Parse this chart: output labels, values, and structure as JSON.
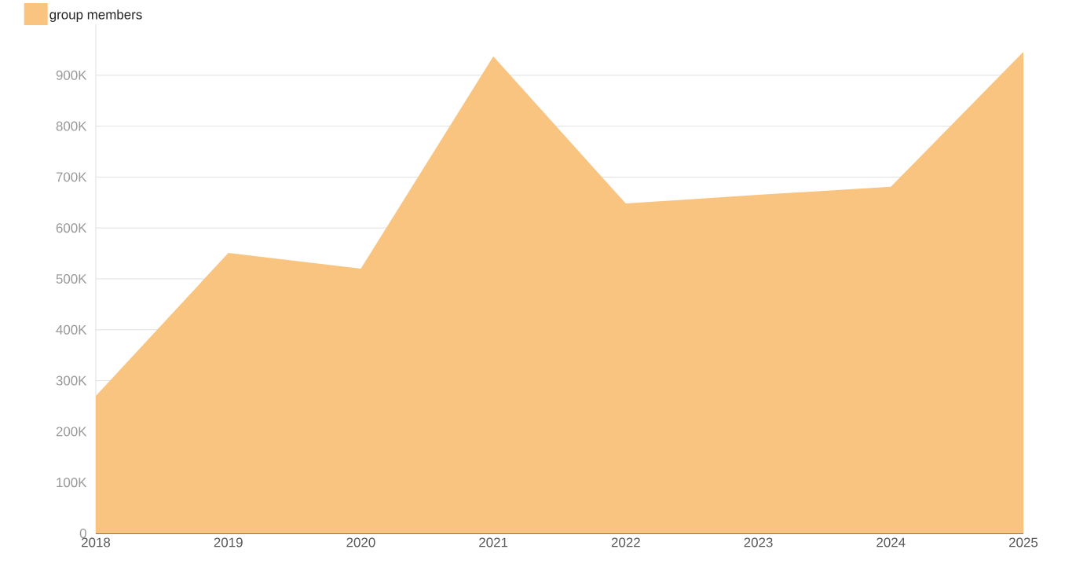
{
  "chart_data": {
    "type": "area",
    "categories": [
      "2018",
      "2019",
      "2020",
      "2021",
      "2022",
      "2023",
      "2024",
      "2025"
    ],
    "series": [
      {
        "name": "group members",
        "color": "#f9c480",
        "values": [
          270000,
          551000,
          520000,
          937000,
          648000,
          665000,
          681000,
          946000
        ]
      }
    ],
    "yticks": [
      {
        "value": 0,
        "label": "0"
      },
      {
        "value": 100000,
        "label": "100K"
      },
      {
        "value": 200000,
        "label": "200K"
      },
      {
        "value": 300000,
        "label": "300K"
      },
      {
        "value": 400000,
        "label": "400K"
      },
      {
        "value": 500000,
        "label": "500K"
      },
      {
        "value": 600000,
        "label": "600K"
      },
      {
        "value": 700000,
        "label": "700K"
      },
      {
        "value": 800000,
        "label": "800K"
      },
      {
        "value": 900000,
        "label": "900K"
      }
    ],
    "ylim": [
      0,
      1000000
    ],
    "grid": "y",
    "legend": "top left"
  }
}
